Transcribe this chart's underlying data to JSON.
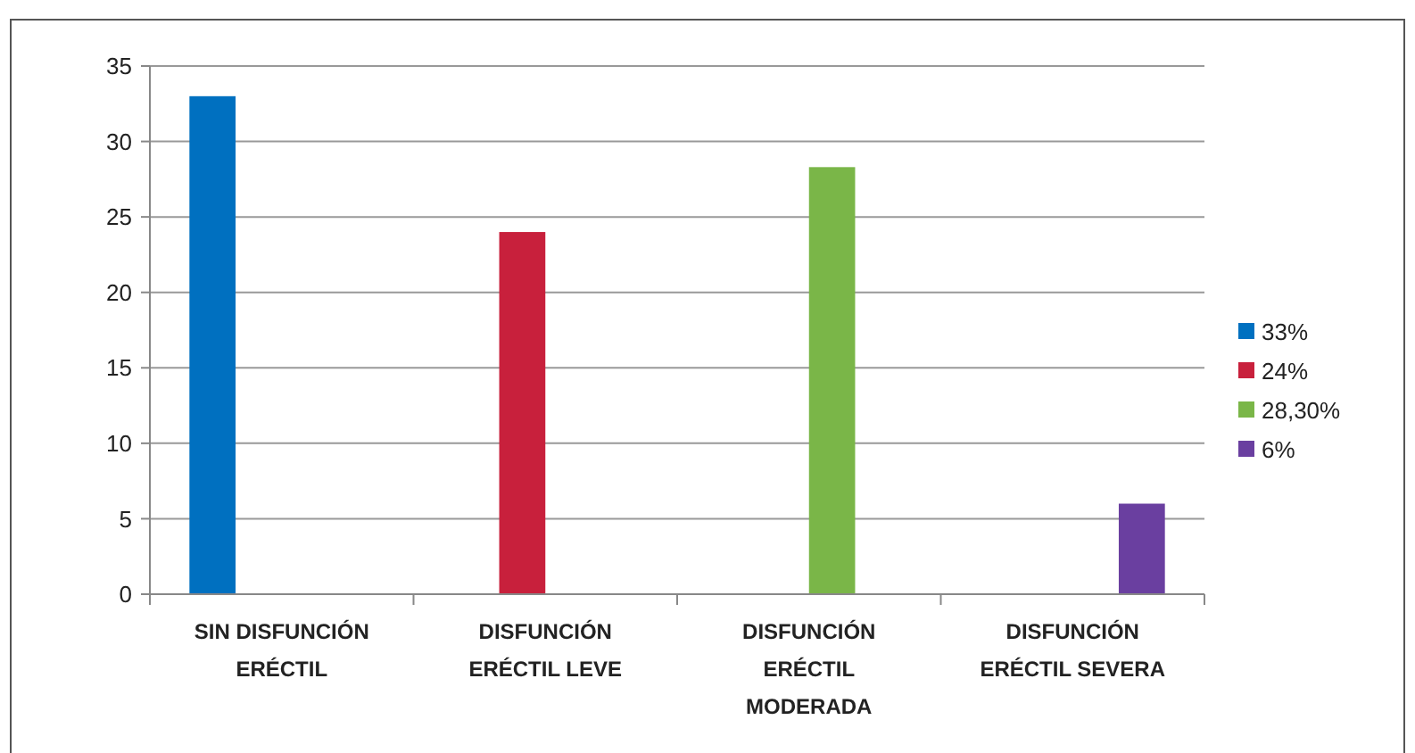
{
  "chart_data": {
    "type": "bar",
    "categories": [
      "SIN DISFUNCIÓN ERÉCTIL",
      "DISFUNCIÓN ERÉCTIL LEVE",
      "DISFUNCIÓN ERÉCTIL MODERADA",
      "DISFUNCIÓN ERÉCTIL SEVERA"
    ],
    "series": [
      {
        "name": "33%",
        "color": "#0070c0",
        "values": [
          33,
          null,
          null,
          null
        ]
      },
      {
        "name": "24%",
        "color": "#c8203c",
        "values": [
          null,
          24,
          null,
          null
        ]
      },
      {
        "name": "28,30%",
        "color": "#7ab648",
        "values": [
          null,
          null,
          28.3,
          null
        ]
      },
      {
        "name": "6%",
        "color": "#6a3fa0",
        "values": [
          null,
          null,
          null,
          6
        ]
      }
    ],
    "ylim": [
      0,
      35
    ],
    "yticks": [
      0,
      5,
      10,
      15,
      20,
      25,
      30,
      35
    ],
    "grid": "y",
    "legend": "right"
  }
}
